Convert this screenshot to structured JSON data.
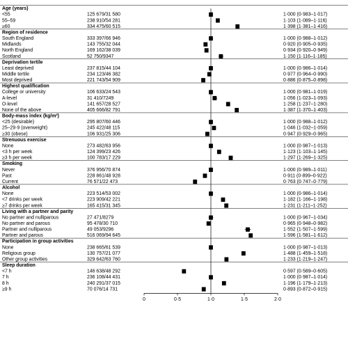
{
  "chart_data": {
    "type": "forest",
    "title": "",
    "xlabel": "",
    "ylabel": "",
    "x_ticks": [
      "0",
      "0·5",
      "1·0",
      "1·5",
      "2·0"
    ],
    "xlim": [
      0,
      2
    ],
    "reference_line": 1.0,
    "groups": [
      {
        "label": "Age (years)",
        "rows": [
          {
            "label": "<55",
            "n": "125 679/31 580",
            "hr": 1.0,
            "lo": 0.983,
            "hi": 1.017,
            "ci": "1·000 (0·983–1·017)"
          },
          {
            "label": "55–59",
            "n": "238 910/54 281",
            "hr": 1.103,
            "lo": 1.089,
            "hi": 1.116,
            "ci": "1·103 (1·089–1·116)"
          },
          {
            "label": "≥60",
            "n": "334 475/60 515",
            "hr": 1.398,
            "lo": 1.381,
            "hi": 1.416,
            "ci": "1·398 (1·381–1·416)"
          }
        ]
      },
      {
        "label": "Region of residence",
        "rows": [
          {
            "label": "South England",
            "n": "333 397/66 946",
            "hr": 1.0,
            "lo": 0.988,
            "hi": 1.012,
            "ci": "1·000 (0·988–1·012)"
          },
          {
            "label": "Midlands",
            "n": "143 755/32 044",
            "hr": 0.92,
            "lo": 0.905,
            "hi": 0.935,
            "ci": "0·920 (0·905–0·935)"
          },
          {
            "label": "North England",
            "n": "169 162/38 039",
            "hr": 0.934,
            "lo": 0.92,
            "hi": 0.949,
            "ci": "0·934 (0·920–0·949)"
          },
          {
            "label": "Scotland",
            "n": "52 750/9347",
            "hr": 1.15,
            "lo": 1.116,
            "hi": 1.185,
            "ci": "1·150 (1·116–1·185)"
          }
        ]
      },
      {
        "label": "Deprivation tertile",
        "rows": [
          {
            "label": "Least deprived",
            "n": "237 815/44 104",
            "hr": 1.0,
            "lo": 0.986,
            "hi": 1.014,
            "ci": "1·000 (0·986–1·014)"
          },
          {
            "label": "Middle tertile",
            "n": "234 123/46 382",
            "hr": 0.977,
            "lo": 0.964,
            "hi": 0.99,
            "ci": "0·977 (0·964–0·990)"
          },
          {
            "label": "Most deprived",
            "n": "221 743/54 909",
            "hr": 0.886,
            "lo": 0.875,
            "hi": 0.898,
            "ci": "0·886 (0·875–0·898)"
          }
        ]
      },
      {
        "label": "Highest qualification",
        "rows": [
          {
            "label": "College or university",
            "n": "106 633/24 543",
            "hr": 1.0,
            "lo": 0.981,
            "hi": 1.019,
            "ci": "1·000 (0·981–1·019)"
          },
          {
            "label": "A-level",
            "n": "31 410/7249",
            "hr": 1.056,
            "lo": 1.023,
            "hi": 1.093,
            "ci": "1·056 (1·023–1·093)"
          },
          {
            "label": "O-level",
            "n": "141 657/28 527",
            "hr": 1.258,
            "lo": 1.237,
            "hi": 1.28,
            "ci": "1·258 (1·237–1·280)"
          },
          {
            "label": "None of the above",
            "n": "405 666/82 791",
            "hr": 1.387,
            "lo": 1.37,
            "hi": 1.403,
            "ci": "1·387 (1·370–1·403)"
          }
        ]
      },
      {
        "label": "Body-mass index (kg/m²)",
        "rows": [
          {
            "label": "<25 (desirable)",
            "n": "295 807/60 446",
            "hr": 1.0,
            "lo": 0.988,
            "hi": 1.012,
            "ci": "1·000 (0·988–1·012)"
          },
          {
            "label": "25–29·9 (overweight)",
            "n": "245 422/48 115",
            "hr": 1.046,
            "lo": 1.032,
            "hi": 1.059,
            "ci": "1·046 (1·032–1·059)"
          },
          {
            "label": "≥30 (obese)",
            "n": "106 931/25 306",
            "hr": 0.947,
            "lo": 0.929,
            "hi": 0.965,
            "ci": "0·947 (0·929–0·965)"
          }
        ]
      },
      {
        "label": "Strenuous exercise",
        "rows": [
          {
            "label": "None",
            "n": "273 482/63 956",
            "hr": 1.0,
            "lo": 0.987,
            "hi": 1.013,
            "ci": "1·000 (0·987–1·013)"
          },
          {
            "label": "<3 h per week",
            "n": "124 399/23 426",
            "hr": 1.123,
            "lo": 1.103,
            "hi": 1.145,
            "ci": "1·123 (1·103–1·145)"
          },
          {
            "label": "≥3 h per week",
            "n": "100 783/17 229",
            "hr": 1.297,
            "lo": 1.269,
            "hi": 1.325,
            "ci": "1·297 (1·269–1·325)"
          }
        ]
      },
      {
        "label": "Smoking",
        "rows": [
          {
            "label": "Never",
            "n": "376 956/70 874",
            "hr": 1.0,
            "lo": 0.989,
            "hi": 1.011,
            "ci": "1·000 (0·989–1·011)"
          },
          {
            "label": "Past",
            "n": "228 861/48 928",
            "hr": 0.911,
            "lo": 0.899,
            "hi": 0.922,
            "ci": "0·911 (0·899–0·922)"
          },
          {
            "label": "Current",
            "n": "76 571/22 473",
            "hr": 0.763,
            "lo": 0.747,
            "hi": 0.779,
            "ci": "0·763 (0·747–0·779)"
          }
        ]
      },
      {
        "label": "Alcohol",
        "rows": [
          {
            "label": "None",
            "n": "223 514/53 002",
            "hr": 1.0,
            "lo": 0.986,
            "hi": 1.014,
            "ci": "1·000 (0·986–1·014)"
          },
          {
            "label": "<7 drinks per week",
            "n": "223 909/42 221",
            "hr": 1.182,
            "lo": 1.166,
            "hi": 1.198,
            "ci": "1·182 (1·166–1·198)"
          },
          {
            "label": "≥7 drinks per week",
            "n": "165 415/31 345",
            "hr": 1.231,
            "lo": 1.211,
            "hi": 1.252,
            "ci": "1·231 (1·211–1·252)"
          }
        ]
      },
      {
        "label": "Living with a partner and parity",
        "rows": [
          {
            "label": "No partner and nulliparous",
            "n": "27 471/8279",
            "hr": 1.0,
            "lo": 0.967,
            "hi": 1.034,
            "ci": "1·000 (0·967–1·034)"
          },
          {
            "label": "No partner and parous",
            "n": "95 478/30 710",
            "hr": 0.965,
            "lo": 0.948,
            "hi": 0.982,
            "ci": "0·965 (0·948–0·982)"
          },
          {
            "label": "Partner and nulliparous",
            "n": "49 053/9296",
            "hr": 1.552,
            "lo": 1.507,
            "hi": 1.599,
            "ci": "1·552 (1·507–1·599)"
          },
          {
            "label": "Partner and parous",
            "n": "516 069/94 645",
            "hr": 1.596,
            "lo": 1.581,
            "hi": 1.612,
            "ci": "1·596 (1·581–1·612)"
          }
        ]
      },
      {
        "label": "Participation in group activities",
        "rows": [
          {
            "label": "None",
            "n": "238 665/61 539",
            "hr": 1.0,
            "lo": 0.987,
            "hi": 1.013,
            "ci": "1·000 (0·987–1·013)"
          },
          {
            "label": "Religious group",
            "n": "130 757/21 077",
            "hr": 1.488,
            "lo": 1.459,
            "hi": 1.518,
            "ci": "1·488 (1·459–1·518)"
          },
          {
            "label": "Other group activities",
            "n": "329 642/63 760",
            "hr": 1.233,
            "lo": 1.219,
            "hi": 1.247,
            "ci": "1·233 (1·219–1·247)"
          }
        ]
      },
      {
        "label": "Sleep duration",
        "rows": [
          {
            "label": "<7 h",
            "n": "146 638/48 292",
            "hr": 0.597,
            "lo": 0.589,
            "hi": 0.605,
            "ci": "0·597 (0·589–0·605)"
          },
          {
            "label": "7 h",
            "n": "236 108/44 431",
            "hr": 1.0,
            "lo": 0.987,
            "hi": 1.014,
            "ci": "1·000 (0·987–1·014)"
          },
          {
            "label": "8 h",
            "n": "240 291/37 015",
            "hr": 1.196,
            "lo": 1.179,
            "hi": 1.213,
            "ci": "1·196 (1·179–1·213)"
          },
          {
            "label": "≥9 h",
            "n": "70 076/14 731",
            "hr": 0.893,
            "lo": 0.872,
            "hi": 0.915,
            "ci": "0·893 (0·872–0·915)"
          }
        ]
      }
    ]
  }
}
